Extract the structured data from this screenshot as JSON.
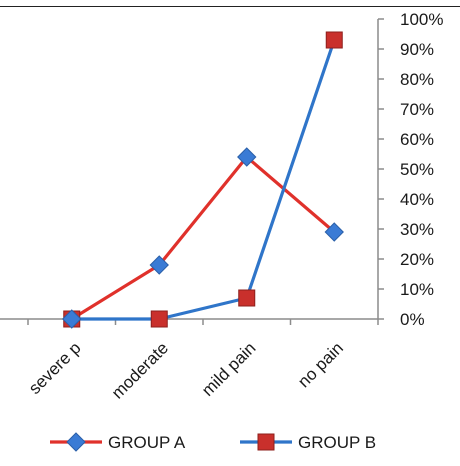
{
  "chart_data": {
    "type": "line",
    "categories": [
      "severe p",
      "moderate",
      "mild pain",
      "no pain"
    ],
    "series": [
      {
        "name": "GROUP A",
        "values": [
          0,
          18,
          54,
          29
        ],
        "color": "#e0312b",
        "marker": "diamond",
        "marker_color": "#3a7bd5"
      },
      {
        "name": "GROUP B",
        "values": [
          0,
          0,
          7,
          93
        ],
        "color": "#2f75c9",
        "marker": "square",
        "marker_color": "#c9302c"
      }
    ],
    "ylim": [
      0,
      100
    ],
    "yticks": [
      0,
      10,
      20,
      30,
      40,
      50,
      60,
      70,
      80,
      90,
      100
    ],
    "ytick_labels": [
      "0%",
      "10%",
      "20%",
      "30%",
      "40%",
      "50%",
      "60%",
      "70%",
      "80%",
      "90%",
      "100%"
    ],
    "y_axis_side": "right",
    "grid": false,
    "legend_position": "bottom",
    "title": "",
    "xlabel": "",
    "ylabel": ""
  }
}
